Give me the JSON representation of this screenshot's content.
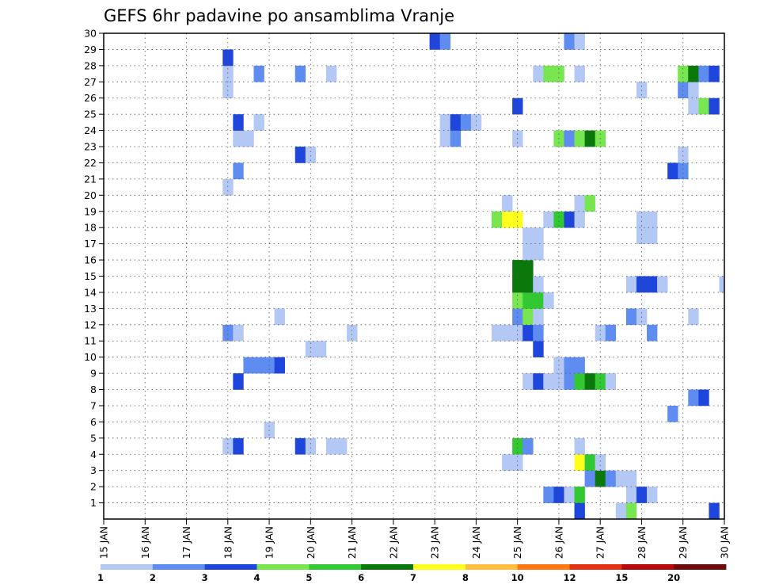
{
  "chart_data": {
    "type": "heatmap",
    "title": "GEFS 6hr padavine po ansamblima Vranje",
    "x_tick_labels": [
      "15 JAN",
      "16 JAN",
      "17 JAN",
      "18 JAN",
      "19 JAN",
      "20 JAN",
      "21 JAN",
      "22 JAN",
      "23 JAN",
      "24 JAN",
      "25 JAN",
      "26 JAN",
      "27 JAN",
      "28 JAN",
      "29 JAN",
      "30 JAN"
    ],
    "y_tick_labels": [
      "1",
      "2",
      "3",
      "4",
      "5",
      "6",
      "7",
      "8",
      "9",
      "10",
      "11",
      "12",
      "13",
      "14",
      "15",
      "16",
      "17",
      "18",
      "19",
      "20",
      "21",
      "22",
      "23",
      "24",
      "25",
      "26",
      "27",
      "28",
      "29",
      "30"
    ],
    "x_unit": "6-hour step since 15 JAN",
    "y_unit": "ensemble member",
    "xlim": [
      0,
      60
    ],
    "ylim": [
      0,
      30
    ],
    "grid": true,
    "colorbar": {
      "placement": "bottom",
      "labels": [
        "1",
        "2",
        "3",
        "4",
        "5",
        "6",
        "7",
        "8",
        "10",
        "12",
        "15",
        "20"
      ],
      "colors": [
        "#b4c8f5",
        "#5f8cf0",
        "#1e46dc",
        "#78e650",
        "#32c832",
        "#0a780a",
        "#ffff1e",
        "#ffbe3c",
        "#ff7814",
        "#e63214",
        "#b40a0a",
        "#6e0a0a"
      ]
    },
    "cells": [
      [
        46,
        0,
        3
      ],
      [
        50,
        0,
        1
      ],
      [
        51,
        0,
        4
      ],
      [
        59,
        0,
        3
      ],
      [
        43,
        1,
        2
      ],
      [
        44,
        1,
        3
      ],
      [
        45,
        1,
        1
      ],
      [
        46,
        1,
        5
      ],
      [
        51,
        1,
        1
      ],
      [
        52,
        1,
        3
      ],
      [
        53,
        1,
        1
      ],
      [
        47,
        2,
        2
      ],
      [
        48,
        2,
        6
      ],
      [
        49,
        2,
        2
      ],
      [
        50,
        2,
        1
      ],
      [
        51,
        2,
        1
      ],
      [
        39,
        3,
        1
      ],
      [
        40,
        3,
        1
      ],
      [
        46,
        3,
        7
      ],
      [
        47,
        3,
        5
      ],
      [
        48,
        3,
        1
      ],
      [
        12,
        4,
        1
      ],
      [
        13,
        4,
        3
      ],
      [
        19,
        4,
        3
      ],
      [
        20,
        4,
        1
      ],
      [
        22,
        4,
        1
      ],
      [
        23,
        4,
        1
      ],
      [
        40,
        4,
        5
      ],
      [
        41,
        4,
        2
      ],
      [
        46,
        4,
        1
      ],
      [
        16,
        5,
        1
      ],
      [
        55,
        6,
        2
      ],
      [
        57,
        7,
        2
      ],
      [
        58,
        7,
        3
      ],
      [
        13,
        8,
        3
      ],
      [
        41,
        8,
        1
      ],
      [
        42,
        8,
        3
      ],
      [
        43,
        8,
        1
      ],
      [
        44,
        8,
        1
      ],
      [
        45,
        8,
        2
      ],
      [
        46,
        8,
        5
      ],
      [
        47,
        8,
        6
      ],
      [
        48,
        8,
        5
      ],
      [
        49,
        8,
        1
      ],
      [
        14,
        9,
        2
      ],
      [
        15,
        9,
        2
      ],
      [
        16,
        9,
        2
      ],
      [
        17,
        9,
        3
      ],
      [
        44,
        9,
        1
      ],
      [
        45,
        9,
        2
      ],
      [
        46,
        9,
        2
      ],
      [
        20,
        10,
        1
      ],
      [
        21,
        10,
        1
      ],
      [
        42,
        10,
        3
      ],
      [
        12,
        11,
        2
      ],
      [
        13,
        11,
        1
      ],
      [
        24,
        11,
        1
      ],
      [
        38,
        11,
        1
      ],
      [
        39,
        11,
        1
      ],
      [
        40,
        11,
        1
      ],
      [
        41,
        11,
        3
      ],
      [
        42,
        11,
        2
      ],
      [
        48,
        11,
        1
      ],
      [
        49,
        11,
        2
      ],
      [
        53,
        11,
        2
      ],
      [
        17,
        12,
        1
      ],
      [
        40,
        12,
        2
      ],
      [
        41,
        12,
        4
      ],
      [
        42,
        12,
        1
      ],
      [
        51,
        12,
        2
      ],
      [
        52,
        12,
        1
      ],
      [
        57,
        12,
        1
      ],
      [
        40,
        13,
        4
      ],
      [
        41,
        13,
        5
      ],
      [
        42,
        13,
        5
      ],
      [
        43,
        13,
        1
      ],
      [
        40,
        14,
        6
      ],
      [
        41,
        14,
        6
      ],
      [
        42,
        14,
        1
      ],
      [
        51,
        14,
        1
      ],
      [
        52,
        14,
        3
      ],
      [
        53,
        14,
        3
      ],
      [
        54,
        14,
        1
      ],
      [
        60,
        14,
        1
      ],
      [
        40,
        15,
        6
      ],
      [
        41,
        15,
        6
      ],
      [
        41,
        16,
        1
      ],
      [
        42,
        16,
        1
      ],
      [
        41,
        17,
        1
      ],
      [
        42,
        17,
        1
      ],
      [
        52,
        17,
        1
      ],
      [
        53,
        17,
        1
      ],
      [
        38,
        18,
        4
      ],
      [
        39,
        18,
        7
      ],
      [
        40,
        18,
        7
      ],
      [
        43,
        18,
        1
      ],
      [
        44,
        18,
        5
      ],
      [
        45,
        18,
        3
      ],
      [
        46,
        18,
        1
      ],
      [
        52,
        18,
        1
      ],
      [
        53,
        18,
        1
      ],
      [
        39,
        19,
        1
      ],
      [
        46,
        19,
        1
      ],
      [
        47,
        19,
        4
      ],
      [
        12,
        20,
        1
      ],
      [
        13,
        21,
        2
      ],
      [
        55,
        21,
        3
      ],
      [
        56,
        21,
        2
      ],
      [
        19,
        22,
        3
      ],
      [
        20,
        22,
        1
      ],
      [
        56,
        22,
        1
      ],
      [
        13,
        23,
        1
      ],
      [
        14,
        23,
        1
      ],
      [
        33,
        23,
        1
      ],
      [
        34,
        23,
        2
      ],
      [
        40,
        23,
        1
      ],
      [
        44,
        23,
        4
      ],
      [
        45,
        23,
        2
      ],
      [
        46,
        23,
        4
      ],
      [
        47,
        23,
        6
      ],
      [
        48,
        23,
        4
      ],
      [
        13,
        24,
        3
      ],
      [
        15,
        24,
        1
      ],
      [
        33,
        24,
        1
      ],
      [
        34,
        24,
        3
      ],
      [
        35,
        24,
        2
      ],
      [
        36,
        24,
        1
      ],
      [
        40,
        25,
        3
      ],
      [
        57,
        25,
        1
      ],
      [
        58,
        25,
        4
      ],
      [
        59,
        25,
        3
      ],
      [
        12,
        26,
        1
      ],
      [
        52,
        26,
        1
      ],
      [
        56,
        26,
        2
      ],
      [
        57,
        26,
        1
      ],
      [
        12,
        27,
        1
      ],
      [
        15,
        27,
        2
      ],
      [
        19,
        27,
        2
      ],
      [
        22,
        27,
        1
      ],
      [
        42,
        27,
        1
      ],
      [
        43,
        27,
        4
      ],
      [
        44,
        27,
        4
      ],
      [
        46,
        27,
        1
      ],
      [
        56,
        27,
        4
      ],
      [
        57,
        27,
        6
      ],
      [
        58,
        27,
        2
      ],
      [
        59,
        27,
        3
      ],
      [
        12,
        28,
        3
      ],
      [
        32,
        29,
        3
      ],
      [
        33,
        29,
        2
      ],
      [
        45,
        29,
        2
      ],
      [
        46,
        29,
        1
      ]
    ]
  }
}
